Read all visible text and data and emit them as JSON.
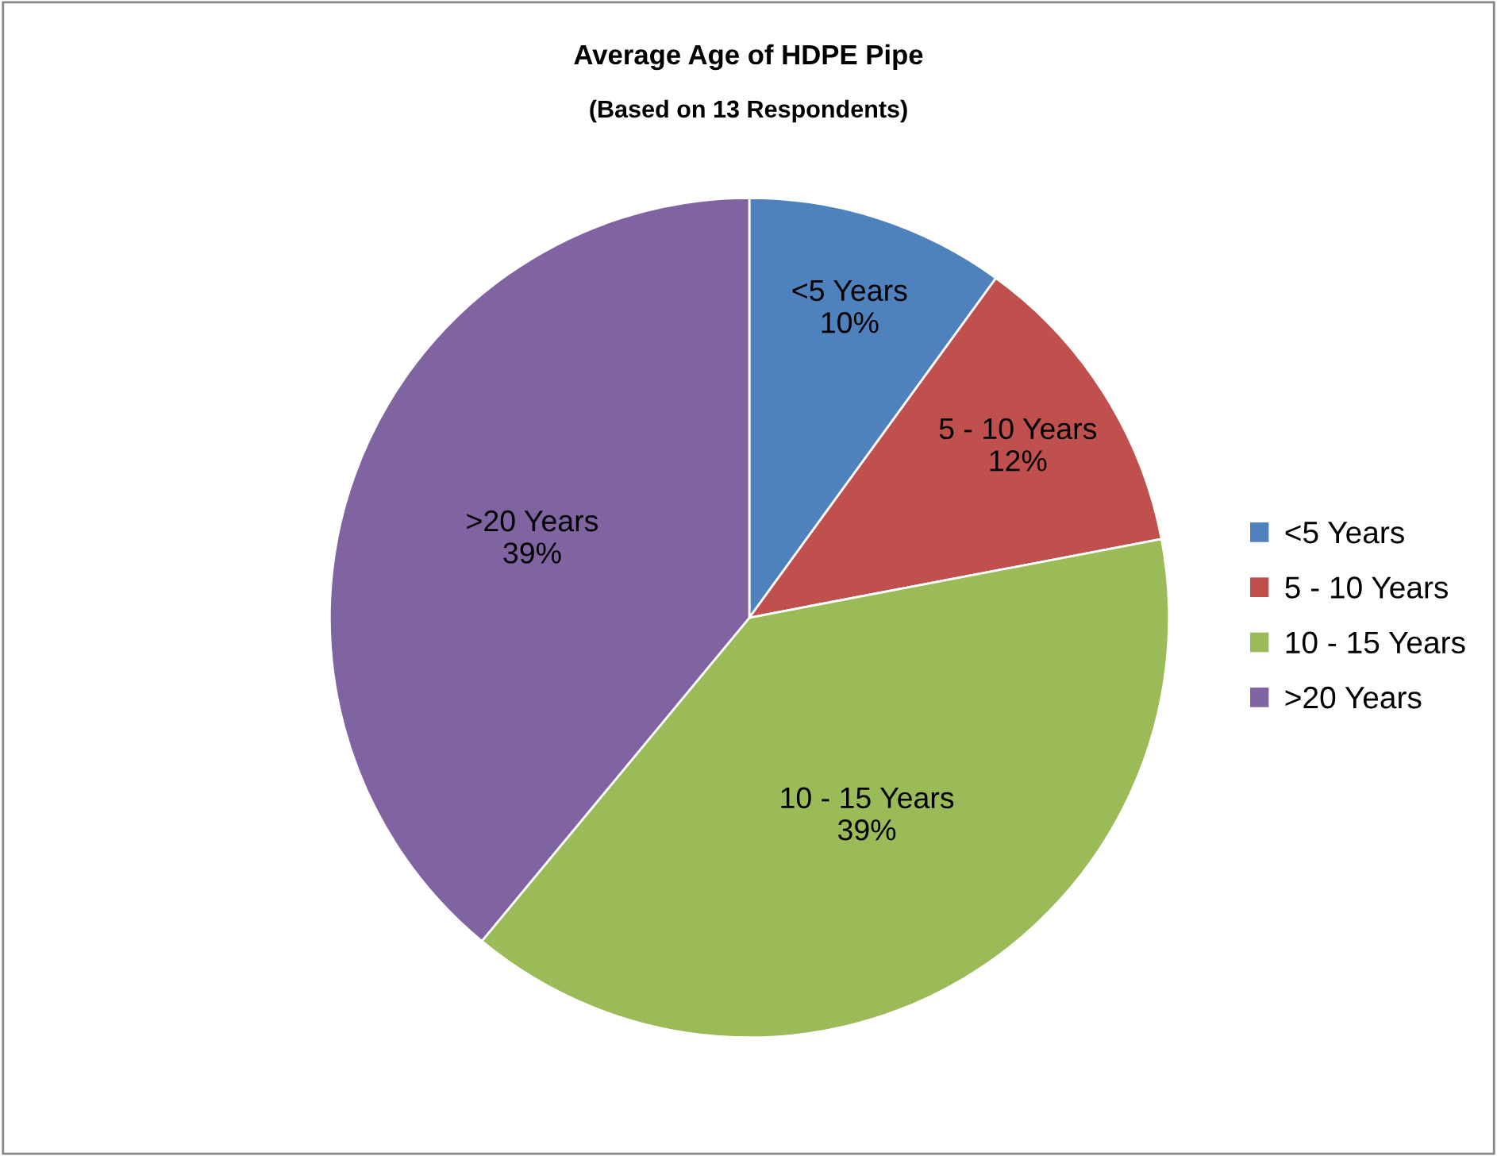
{
  "chart_data": {
    "type": "pie",
    "title": "Average Age of HDPE Pipe",
    "subtitle": "(Based on 13 Respondents)",
    "categories": [
      "<5 Years",
      "5 - 10 Years",
      "10 - 15 Years",
      ">20 Years"
    ],
    "values": [
      10,
      12,
      39,
      39
    ],
    "value_labels": [
      "10%",
      "12%",
      "39%",
      "39%"
    ],
    "colors": [
      "#4f81bd",
      "#c0504d",
      "#9bbb59",
      "#8064a2"
    ],
    "legend": "right"
  }
}
